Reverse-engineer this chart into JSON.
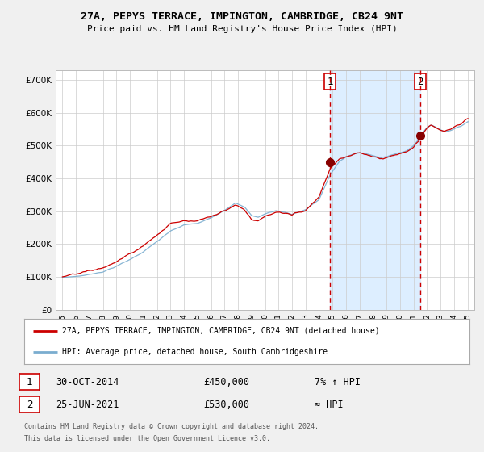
{
  "title": "27A, PEPYS TERRACE, IMPINGTON, CAMBRIDGE, CB24 9NT",
  "subtitle": "Price paid vs. HM Land Registry's House Price Index (HPI)",
  "legend_line1": "27A, PEPYS TERRACE, IMPINGTON, CAMBRIDGE, CB24 9NT (detached house)",
  "legend_line2": "HPI: Average price, detached house, South Cambridgeshire",
  "footer_line1": "Contains HM Land Registry data © Crown copyright and database right 2024.",
  "footer_line2": "This data is licensed under the Open Government Licence v3.0.",
  "sale1_label": "1",
  "sale1_date": "30-OCT-2014",
  "sale1_price": "£450,000",
  "sale1_hpi": "7% ↑ HPI",
  "sale2_label": "2",
  "sale2_date": "25-JUN-2021",
  "sale2_price": "£530,000",
  "sale2_hpi": "≈ HPI",
  "sale1_year": 2014.83,
  "sale1_value": 450000,
  "sale2_year": 2021.48,
  "sale2_value": 530000,
  "hpi_red_color": "#cc0000",
  "hpi_blue_color": "#7aadcf",
  "highlight_color": "#ddeeff",
  "dashed_color": "#cc0000",
  "dot_color": "#880000",
  "background_color": "#f0f0f0",
  "plot_bg_color": "#ffffff",
  "grid_color": "#cccccc",
  "ylim": [
    0,
    730000
  ],
  "xlim_start": 1994.5,
  "xlim_end": 2025.5,
  "yticks": [
    0,
    100000,
    200000,
    300000,
    400000,
    500000,
    600000,
    700000
  ],
  "ylabels": [
    "£0",
    "£100K",
    "£200K",
    "£300K",
    "£400K",
    "£500K",
    "£600K",
    "£700K"
  ],
  "xticks": [
    1995,
    1996,
    1997,
    1998,
    1999,
    2000,
    2001,
    2002,
    2003,
    2004,
    2005,
    2006,
    2007,
    2008,
    2009,
    2010,
    2011,
    2012,
    2013,
    2014,
    2015,
    2016,
    2017,
    2018,
    2019,
    2020,
    2021,
    2022,
    2023,
    2024,
    2025
  ]
}
